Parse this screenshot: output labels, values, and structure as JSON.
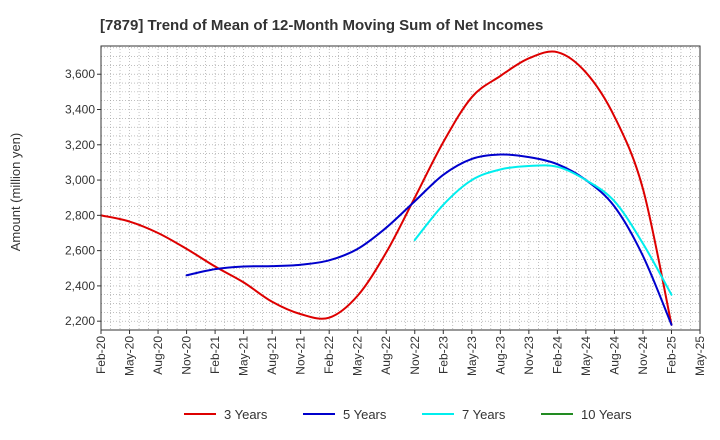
{
  "chart_data": {
    "type": "line",
    "title": "[7879]  Trend of Mean of 12-Month Moving Sum of Net Incomes",
    "xlabel": "",
    "ylabel": "Amount (million yen)",
    "ylim": [
      2150,
      3760
    ],
    "yticks": [
      2200,
      2400,
      2600,
      2800,
      3000,
      3200,
      3400,
      3600
    ],
    "ytick_labels": [
      "2,200",
      "2,400",
      "2,600",
      "2,800",
      "3,000",
      "3,200",
      "3,400",
      "3,600"
    ],
    "x_start": "Feb-20",
    "x_labels": [
      "Feb-20",
      "May-20",
      "Aug-20",
      "Nov-20",
      "Feb-21",
      "May-21",
      "Aug-21",
      "Nov-21",
      "Feb-22",
      "May-22",
      "Aug-22",
      "Nov-22",
      "Feb-23",
      "May-23",
      "Aug-23",
      "Nov-23",
      "Feb-24",
      "May-24",
      "Aug-24",
      "Nov-24",
      "Feb-25",
      "May-25"
    ],
    "grid": true,
    "legend_position": "bottom",
    "series": [
      {
        "name": "3 Years",
        "color": "#dd0000",
        "points": [
          [
            "Feb-20",
            2800
          ],
          [
            "May-20",
            2765
          ],
          [
            "Aug-20",
            2700
          ],
          [
            "Nov-20",
            2610
          ],
          [
            "Feb-21",
            2510
          ],
          [
            "May-21",
            2420
          ],
          [
            "Aug-21",
            2310
          ],
          [
            "Nov-21",
            2240
          ],
          [
            "Feb-22",
            2220
          ],
          [
            "May-22",
            2345
          ],
          [
            "Aug-22",
            2590
          ],
          [
            "Nov-22",
            2900
          ],
          [
            "Feb-23",
            3215
          ],
          [
            "May-23",
            3470
          ],
          [
            "Aug-23",
            3590
          ],
          [
            "Nov-23",
            3690
          ],
          [
            "Feb-24",
            3725
          ],
          [
            "May-24",
            3610
          ],
          [
            "Aug-24",
            3360
          ],
          [
            "Nov-24",
            2950
          ],
          [
            "Feb-25",
            2180
          ]
        ]
      },
      {
        "name": "5 Years",
        "color": "#0000cc",
        "points": [
          [
            "Nov-20",
            2460
          ],
          [
            "Feb-21",
            2495
          ],
          [
            "May-21",
            2510
          ],
          [
            "Aug-21",
            2512
          ],
          [
            "Nov-21",
            2520
          ],
          [
            "Feb-22",
            2545
          ],
          [
            "May-22",
            2610
          ],
          [
            "Aug-22",
            2730
          ],
          [
            "Nov-22",
            2880
          ],
          [
            "Feb-23",
            3030
          ],
          [
            "May-23",
            3120
          ],
          [
            "Aug-23",
            3145
          ],
          [
            "Nov-23",
            3130
          ],
          [
            "Feb-24",
            3090
          ],
          [
            "May-24",
            3000
          ],
          [
            "Aug-24",
            2850
          ],
          [
            "Nov-24",
            2570
          ],
          [
            "Feb-25",
            2180
          ]
        ]
      },
      {
        "name": "7 Years",
        "color": "#00eeee",
        "points": [
          [
            "Nov-22",
            2660
          ],
          [
            "Feb-23",
            2860
          ],
          [
            "May-23",
            3000
          ],
          [
            "Aug-23",
            3060
          ],
          [
            "Nov-23",
            3080
          ],
          [
            "Feb-24",
            3075
          ],
          [
            "May-24",
            3000
          ],
          [
            "Aug-24",
            2880
          ],
          [
            "Nov-24",
            2640
          ],
          [
            "Feb-25",
            2350
          ]
        ]
      },
      {
        "name": "10 Years",
        "color": "#228b22",
        "points": []
      }
    ]
  }
}
